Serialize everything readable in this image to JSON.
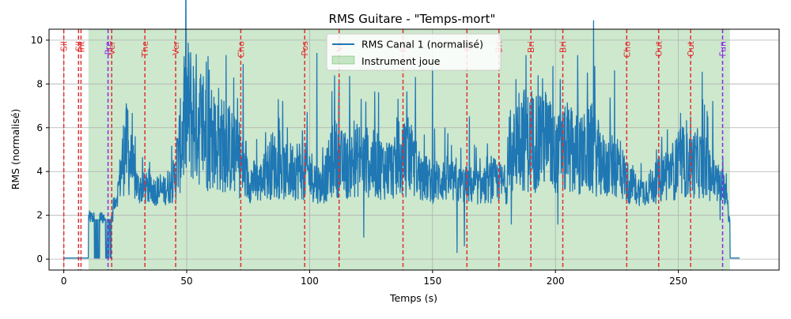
{
  "chart_data": {
    "type": "line",
    "title": "RMS Guitare - \"Temps-mort\"",
    "xlabel": "Temps (s)",
    "ylabel": "RMS (normalisé)",
    "xlim": [
      -6,
      291
    ],
    "ylim": [
      -0.5,
      10.5
    ],
    "xticks": [
      0,
      50,
      100,
      150,
      200,
      250
    ],
    "yticks": [
      0,
      2,
      4,
      6,
      8,
      10
    ],
    "grid": true,
    "legend_position": "top-center",
    "colors": {
      "line": "#1f77b4",
      "span": "#2ca02c",
      "marker_red": "#e03030",
      "marker_purple": "#8a2be2",
      "grid": "#b0b0b0"
    },
    "series": [
      {
        "name": "RMS Canal 1 (normalisé)",
        "envelope": [
          {
            "x": 0,
            "y": 0.05
          },
          {
            "x": 10,
            "y": 0.05
          },
          {
            "x": 11,
            "y": 2.1
          },
          {
            "x": 17,
            "y": 2.0
          },
          {
            "x": 20,
            "y": 2.2
          },
          {
            "x": 22,
            "y": 3.0
          },
          {
            "x": 25,
            "y": 5.0
          },
          {
            "x": 30,
            "y": 3.2
          },
          {
            "x": 40,
            "y": 3.0
          },
          {
            "x": 45,
            "y": 3.5
          },
          {
            "x": 50,
            "y": 6.5
          },
          {
            "x": 55,
            "y": 6.0
          },
          {
            "x": 60,
            "y": 5.0
          },
          {
            "x": 66,
            "y": 5.0
          },
          {
            "x": 70,
            "y": 4.5
          },
          {
            "x": 75,
            "y": 3.5
          },
          {
            "x": 80,
            "y": 3.4
          },
          {
            "x": 85,
            "y": 4.2
          },
          {
            "x": 90,
            "y": 3.8
          },
          {
            "x": 95,
            "y": 4.0
          },
          {
            "x": 100,
            "y": 3.8
          },
          {
            "x": 105,
            "y": 3.2
          },
          {
            "x": 110,
            "y": 4.5
          },
          {
            "x": 115,
            "y": 4.0
          },
          {
            "x": 120,
            "y": 4.4
          },
          {
            "x": 125,
            "y": 4.2
          },
          {
            "x": 130,
            "y": 4.0
          },
          {
            "x": 135,
            "y": 4.0
          },
          {
            "x": 140,
            "y": 4.5
          },
          {
            "x": 145,
            "y": 3.7
          },
          {
            "x": 150,
            "y": 3.4
          },
          {
            "x": 155,
            "y": 3.6
          },
          {
            "x": 160,
            "y": 3.3
          },
          {
            "x": 165,
            "y": 3.3
          },
          {
            "x": 170,
            "y": 3.2
          },
          {
            "x": 175,
            "y": 3.5
          },
          {
            "x": 180,
            "y": 3.3
          },
          {
            "x": 185,
            "y": 5.5
          },
          {
            "x": 190,
            "y": 5.0
          },
          {
            "x": 195,
            "y": 5.5
          },
          {
            "x": 200,
            "y": 4.5
          },
          {
            "x": 205,
            "y": 4.8
          },
          {
            "x": 210,
            "y": 4.5
          },
          {
            "x": 215,
            "y": 4.8
          },
          {
            "x": 220,
            "y": 4.0
          },
          {
            "x": 225,
            "y": 4.2
          },
          {
            "x": 230,
            "y": 3.3
          },
          {
            "x": 235,
            "y": 3.0
          },
          {
            "x": 240,
            "y": 3.3
          },
          {
            "x": 245,
            "y": 3.8
          },
          {
            "x": 250,
            "y": 4.0
          },
          {
            "x": 255,
            "y": 4.2
          },
          {
            "x": 260,
            "y": 4.2
          },
          {
            "x": 265,
            "y": 3.5
          },
          {
            "x": 270,
            "y": 3.0
          },
          {
            "x": 271,
            "y": 0.05
          },
          {
            "x": 275,
            "y": 0.05
          }
        ],
        "peaks": [
          {
            "x": 26,
            "y": 6.8
          },
          {
            "x": 46,
            "y": 5.5
          },
          {
            "x": 51,
            "y": 8.2
          },
          {
            "x": 56,
            "y": 7.3
          },
          {
            "x": 58,
            "y": 9.0
          },
          {
            "x": 63,
            "y": 7.8
          },
          {
            "x": 66,
            "y": 9.3
          },
          {
            "x": 73,
            "y": 8.9
          },
          {
            "x": 91,
            "y": 6.0
          },
          {
            "x": 99,
            "y": 6.7
          },
          {
            "x": 103,
            "y": 9.4
          },
          {
            "x": 112,
            "y": 8.2
          },
          {
            "x": 121,
            "y": 7.3
          },
          {
            "x": 128,
            "y": 7.6
          },
          {
            "x": 136,
            "y": 7.3
          },
          {
            "x": 143,
            "y": 8.3
          },
          {
            "x": 150,
            "y": 8.8
          },
          {
            "x": 155,
            "y": 6.0
          },
          {
            "x": 165,
            "y": 6.5
          },
          {
            "x": 184,
            "y": 8.2
          },
          {
            "x": 188,
            "y": 9.3
          },
          {
            "x": 194,
            "y": 7.4
          },
          {
            "x": 199,
            "y": 8.8
          },
          {
            "x": 202,
            "y": 8.2
          },
          {
            "x": 209,
            "y": 9.3
          },
          {
            "x": 213,
            "y": 8.5
          },
          {
            "x": 216,
            "y": 8.8
          },
          {
            "x": 224,
            "y": 8.6
          },
          {
            "x": 250,
            "y": 5.8
          },
          {
            "x": 255,
            "y": 6.5
          },
          {
            "x": 262,
            "y": 6.5
          },
          {
            "x": 264,
            "y": 7.2
          }
        ],
        "dips": [
          {
            "x": 122,
            "y": 1.0
          },
          {
            "x": 160,
            "y": 0.3
          },
          {
            "x": 163,
            "y": 0.6
          },
          {
            "x": 182,
            "y": 1.6
          },
          {
            "x": 201,
            "y": 1.6
          },
          {
            "x": 267,
            "y": 1.8
          }
        ]
      }
    ],
    "spans": [
      {
        "name": "Instrument joue",
        "x0": 10,
        "x1": 271
      }
    ],
    "markers": [
      {
        "x": 0,
        "label": "Sil",
        "color": "#e03030"
      },
      {
        "x": 6,
        "label": "Sil",
        "color": "#e03030"
      },
      {
        "x": 7,
        "label": "Int",
        "color": "#e03030"
      },
      {
        "x": 18,
        "label": "Pre",
        "color": "#8a2be2"
      },
      {
        "x": 19.5,
        "label": "Ver",
        "color": "#e03030"
      },
      {
        "x": 33,
        "label": "The",
        "color": "#e03030"
      },
      {
        "x": 45.5,
        "label": "Ver",
        "color": "#e03030"
      },
      {
        "x": 72,
        "label": "Cho",
        "color": "#e03030"
      },
      {
        "x": 98,
        "label": "Pos",
        "color": "#e03030"
      },
      {
        "x": 112,
        "label": "Ve",
        "color": "#e03030"
      },
      {
        "x": 138,
        "label": "Ch",
        "color": "#e03030"
      },
      {
        "x": 164,
        "label": "Po",
        "color": "#e03030"
      },
      {
        "x": 177,
        "label": "Bri",
        "color": "#e03030"
      },
      {
        "x": 190,
        "label": "Bri",
        "color": "#e03030"
      },
      {
        "x": 203,
        "label": "Bri",
        "color": "#e03030"
      },
      {
        "x": 229,
        "label": "Cho",
        "color": "#e03030"
      },
      {
        "x": 242,
        "label": "Out",
        "color": "#e03030"
      },
      {
        "x": 255,
        "label": "Out",
        "color": "#e03030"
      },
      {
        "x": 268,
        "label": "Fun",
        "color": "#8a2be2"
      }
    ]
  }
}
